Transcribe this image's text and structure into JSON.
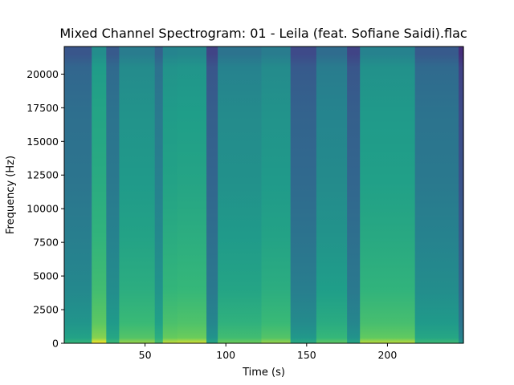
{
  "chart_data": {
    "type": "heatmap",
    "title": "Mixed Channel Spectrogram: 01 - Leila (feat. Sofiane Saidi).flac",
    "xlabel": "Time (s)",
    "ylabel": "Frequency (Hz)",
    "xlim": [
      0,
      247
    ],
    "ylim": [
      0,
      22050
    ],
    "x_ticks": [
      50,
      100,
      150,
      200
    ],
    "y_ticks": [
      0,
      2500,
      5000,
      7500,
      10000,
      12500,
      15000,
      17500,
      20000
    ],
    "colormap": "viridis",
    "grid": false,
    "segments": [
      {
        "start": 0,
        "end": 17,
        "level": 0.45
      },
      {
        "start": 17,
        "end": 26,
        "level": 0.7
      },
      {
        "start": 26,
        "end": 34,
        "level": 0.47
      },
      {
        "start": 34,
        "end": 56,
        "level": 0.62
      },
      {
        "start": 56,
        "end": 61,
        "level": 0.5
      },
      {
        "start": 61,
        "end": 70,
        "level": 0.66
      },
      {
        "start": 70,
        "end": 88,
        "level": 0.67
      },
      {
        "start": 88,
        "end": 95,
        "level": 0.38
      },
      {
        "start": 95,
        "end": 122,
        "level": 0.58
      },
      {
        "start": 122,
        "end": 140,
        "level": 0.62
      },
      {
        "start": 140,
        "end": 156,
        "level": 0.4
      },
      {
        "start": 156,
        "end": 175,
        "level": 0.55
      },
      {
        "start": 175,
        "end": 183,
        "level": 0.38
      },
      {
        "start": 183,
        "end": 217,
        "level": 0.65
      },
      {
        "start": 217,
        "end": 244,
        "level": 0.47
      },
      {
        "start": 244,
        "end": 247,
        "level": 0.3
      }
    ]
  }
}
